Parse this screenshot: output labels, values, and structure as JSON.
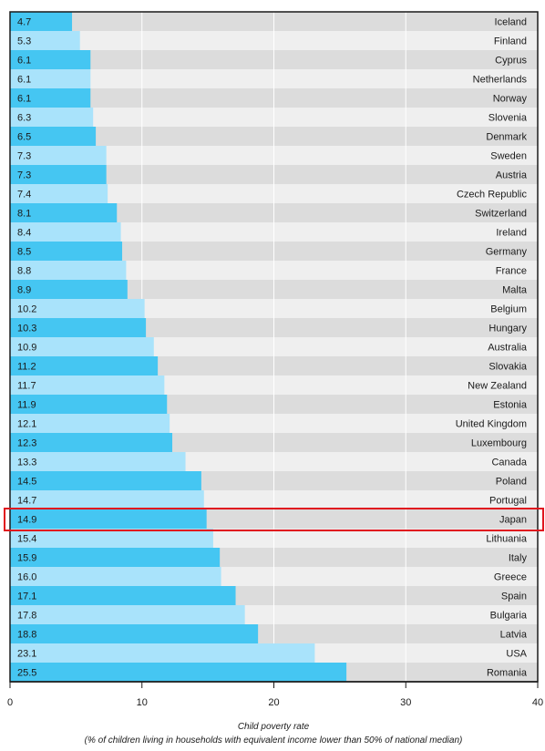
{
  "chart_data": {
    "type": "bar",
    "orientation": "horizontal",
    "categories": [
      "Iceland",
      "Finland",
      "Cyprus",
      "Netherlands",
      "Norway",
      "Slovenia",
      "Denmark",
      "Sweden",
      "Austria",
      "Czech Republic",
      "Switzerland",
      "Ireland",
      "Germany",
      "France",
      "Malta",
      "Belgium",
      "Hungary",
      "Australia",
      "Slovakia",
      "New Zealand",
      "Estonia",
      "United Kingdom",
      "Luxembourg",
      "Canada",
      "Poland",
      "Portugal",
      "Japan",
      "Lithuania",
      "Italy",
      "Greece",
      "Spain",
      "Bulgaria",
      "Latvia",
      "USA",
      "Romania"
    ],
    "values": [
      4.7,
      5.3,
      6.1,
      6.1,
      6.1,
      6.3,
      6.5,
      7.3,
      7.3,
      7.4,
      8.1,
      8.4,
      8.5,
      8.8,
      8.9,
      10.2,
      10.3,
      10.9,
      11.2,
      11.7,
      11.9,
      12.1,
      12.3,
      13.3,
      14.5,
      14.7,
      14.9,
      15.4,
      15.9,
      16.0,
      17.1,
      17.8,
      18.8,
      23.1,
      25.5
    ],
    "value_labels": [
      "4.7",
      "5.3",
      "6.1",
      "6.1",
      "6.1",
      "6.3",
      "6.5",
      "7.3",
      "7.3",
      "7.4",
      "8.1",
      "8.4",
      "8.5",
      "8.8",
      "8.9",
      "10.2",
      "10.3",
      "10.9",
      "11.2",
      "11.7",
      "11.9",
      "12.1",
      "12.3",
      "13.3",
      "14.5",
      "14.7",
      "14.9",
      "15.4",
      "15.9",
      "16.0",
      "17.1",
      "17.8",
      "18.8",
      "23.1",
      "25.5"
    ],
    "highlighted": "Japan",
    "xlim": [
      0,
      40
    ],
    "xticks": [
      0,
      10,
      20,
      30,
      40
    ],
    "xlabel": "Child poverty rate",
    "xlabel_sub": "(% of children living in households with equivalent income lower than 50% of national median)",
    "grid": true,
    "colors": {
      "bar_dark": "#45c6f2",
      "bar_light": "#a9e3fb",
      "row_bg_dark": "#dcdcdc",
      "row_bg_light": "#efefef",
      "gridline": "#ffffff",
      "highlight_box": "#e0141e",
      "axis": "#1a1a1a"
    }
  }
}
